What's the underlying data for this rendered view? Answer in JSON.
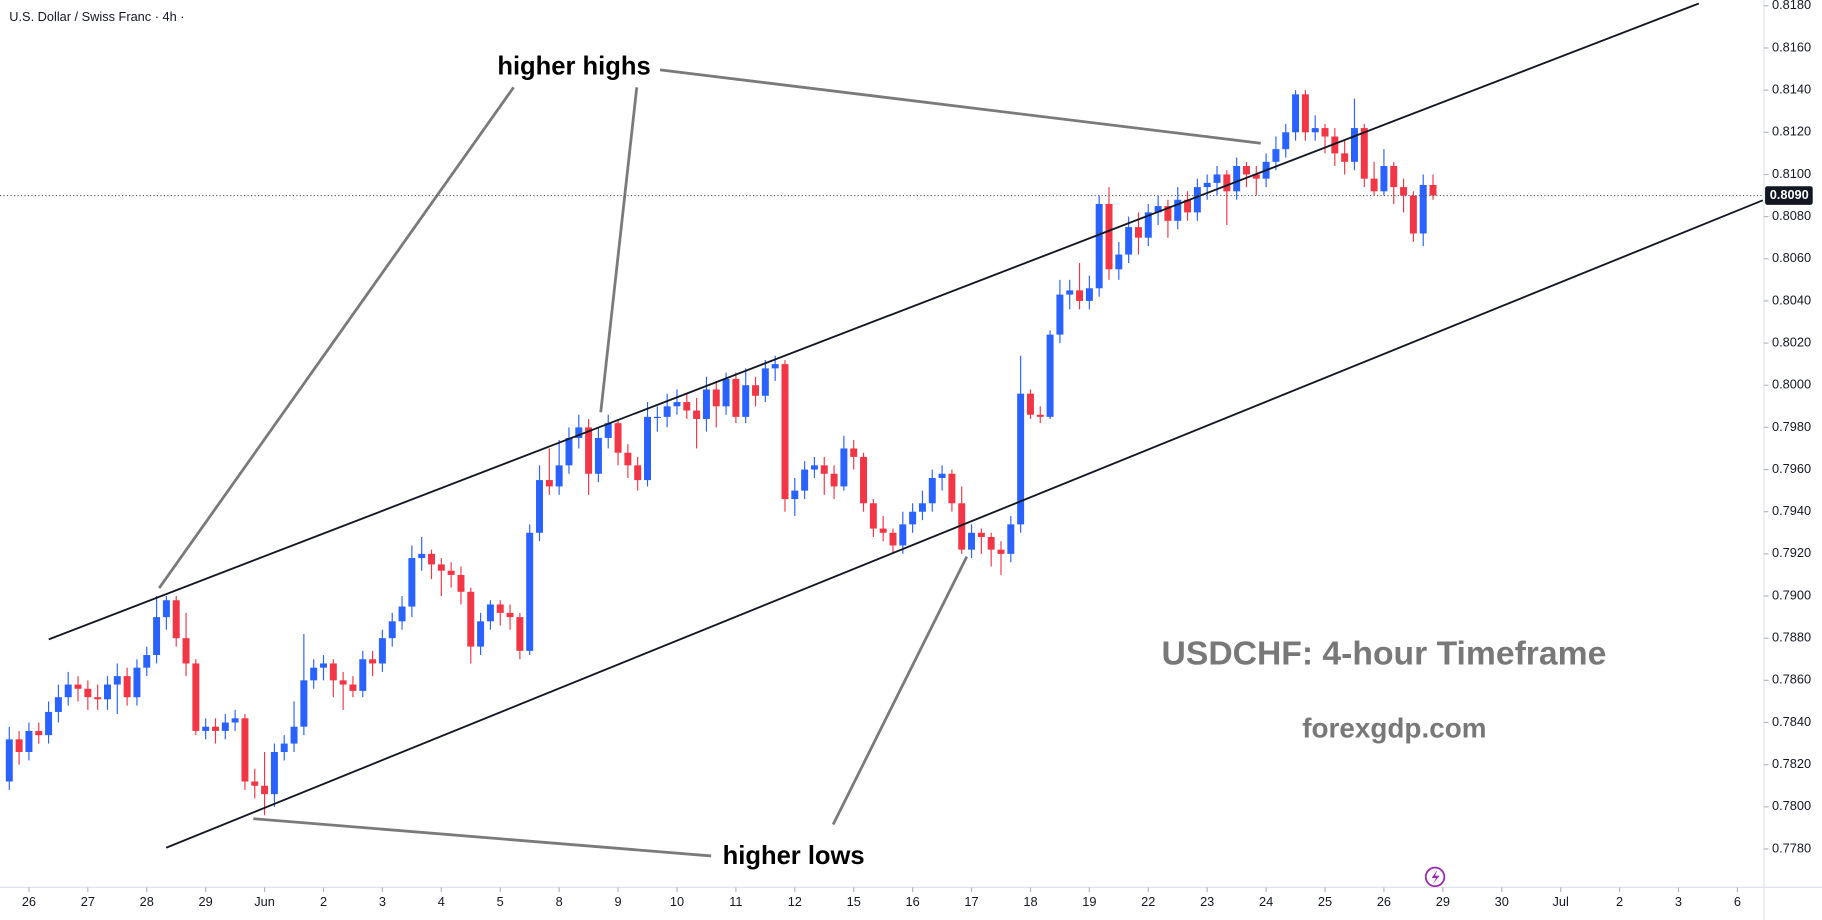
{
  "chart_data": {
    "type": "candlestick",
    "title": "U.S. Dollar / Swiss Franc · 4h ·",
    "annotations": [
      "higher highs",
      "higher lows",
      "USDCHF: 4-hour Timeframe",
      "forexgdp.com"
    ],
    "up_color": "#2962ff",
    "down_color": "#f23645",
    "ylim": [
      0.778,
      0.818
    ],
    "yticks": [
      {
        "value": 0.778,
        "label": "0.7780"
      },
      {
        "value": 0.78,
        "label": "0.7800"
      },
      {
        "value": 0.782,
        "label": "0.7820"
      },
      {
        "value": 0.784,
        "label": "0.7840"
      },
      {
        "value": 0.786,
        "label": "0.7860"
      },
      {
        "value": 0.788,
        "label": "0.7880"
      },
      {
        "value": 0.79,
        "label": "0.7900"
      },
      {
        "value": 0.792,
        "label": "0.7920"
      },
      {
        "value": 0.794,
        "label": "0.7940"
      },
      {
        "value": 0.796,
        "label": "0.7960"
      },
      {
        "value": 0.798,
        "label": "0.7980"
      },
      {
        "value": 0.8,
        "label": "0.8000"
      },
      {
        "value": 0.802,
        "label": "0.8020"
      },
      {
        "value": 0.804,
        "label": "0.8040"
      },
      {
        "value": 0.806,
        "label": "0.8060"
      },
      {
        "value": 0.808,
        "label": "0.8080"
      },
      {
        "value": 0.81,
        "label": "0.8100"
      },
      {
        "value": 0.812,
        "label": "0.8120"
      },
      {
        "value": 0.814,
        "label": "0.8140"
      },
      {
        "value": 0.816,
        "label": "0.8160"
      },
      {
        "value": 0.818,
        "label": "0.8180"
      }
    ],
    "last_price": {
      "value": 0.809,
      "label": "0.8090"
    },
    "xticks": [
      "26",
      "27",
      "28",
      "29",
      "Jun",
      "2",
      "3",
      "4",
      "5",
      "8",
      "9",
      "10",
      "11",
      "12",
      "15",
      "16",
      "17",
      "18",
      "19",
      "22",
      "23",
      "24",
      "25",
      "26",
      "29",
      "30",
      "Jul",
      "2",
      "3",
      "6"
    ],
    "ohlc": [
      [
        0.7812,
        0.7838,
        0.7808,
        0.7832
      ],
      [
        0.7832,
        0.7836,
        0.782,
        0.7826
      ],
      [
        0.7826,
        0.784,
        0.7822,
        0.7836
      ],
      [
        0.7836,
        0.784,
        0.783,
        0.7834
      ],
      [
        0.7834,
        0.785,
        0.783,
        0.7845
      ],
      [
        0.7845,
        0.7858,
        0.784,
        0.7852
      ],
      [
        0.7852,
        0.7864,
        0.7848,
        0.7858
      ],
      [
        0.7858,
        0.7862,
        0.785,
        0.7856
      ],
      [
        0.7856,
        0.786,
        0.7846,
        0.7852
      ],
      [
        0.7852,
        0.7858,
        0.7846,
        0.7851
      ],
      [
        0.7851,
        0.7862,
        0.7846,
        0.7858
      ],
      [
        0.7858,
        0.7868,
        0.7844,
        0.7862
      ],
      [
        0.7862,
        0.7866,
        0.7848,
        0.7852
      ],
      [
        0.7852,
        0.787,
        0.7848,
        0.7866
      ],
      [
        0.7866,
        0.7876,
        0.7862,
        0.7872
      ],
      [
        0.7872,
        0.79,
        0.7868,
        0.789
      ],
      [
        0.789,
        0.79,
        0.7884,
        0.7898
      ],
      [
        0.7898,
        0.79,
        0.7876,
        0.788
      ],
      [
        0.788,
        0.7892,
        0.7862,
        0.7868
      ],
      [
        0.7868,
        0.787,
        0.7834,
        0.7836
      ],
      [
        0.7836,
        0.7842,
        0.7832,
        0.7838
      ],
      [
        0.7838,
        0.7842,
        0.783,
        0.7836
      ],
      [
        0.7836,
        0.7844,
        0.7832,
        0.784
      ],
      [
        0.784,
        0.7846,
        0.7836,
        0.7842
      ],
      [
        0.7842,
        0.7844,
        0.7808,
        0.7812
      ],
      [
        0.7812,
        0.7818,
        0.7804,
        0.781
      ],
      [
        0.781,
        0.7826,
        0.7796,
        0.7806
      ],
      [
        0.7806,
        0.783,
        0.78,
        0.7826
      ],
      [
        0.7826,
        0.7834,
        0.7822,
        0.783
      ],
      [
        0.783,
        0.785,
        0.7826,
        0.7838
      ],
      [
        0.7838,
        0.7882,
        0.7834,
        0.786
      ],
      [
        0.786,
        0.787,
        0.7856,
        0.7866
      ],
      [
        0.7866,
        0.7872,
        0.786,
        0.7868
      ],
      [
        0.7868,
        0.787,
        0.7852,
        0.786
      ],
      [
        0.786,
        0.7864,
        0.7846,
        0.7858
      ],
      [
        0.7858,
        0.7862,
        0.7852,
        0.7855
      ],
      [
        0.7855,
        0.7874,
        0.7852,
        0.787
      ],
      [
        0.787,
        0.7874,
        0.7862,
        0.7868
      ],
      [
        0.7868,
        0.7884,
        0.7864,
        0.788
      ],
      [
        0.788,
        0.7892,
        0.7876,
        0.7888
      ],
      [
        0.7888,
        0.79,
        0.7884,
        0.7895
      ],
      [
        0.7895,
        0.7924,
        0.789,
        0.7918
      ],
      [
        0.7918,
        0.7928,
        0.7912,
        0.792
      ],
      [
        0.792,
        0.7922,
        0.7908,
        0.7915
      ],
      [
        0.7915,
        0.7918,
        0.79,
        0.7912
      ],
      [
        0.7912,
        0.7916,
        0.7904,
        0.791
      ],
      [
        0.791,
        0.7914,
        0.7896,
        0.7902
      ],
      [
        0.7902,
        0.7904,
        0.7868,
        0.7876
      ],
      [
        0.7876,
        0.7892,
        0.7872,
        0.7888
      ],
      [
        0.7888,
        0.7898,
        0.7884,
        0.7896
      ],
      [
        0.7896,
        0.7898,
        0.7886,
        0.7892
      ],
      [
        0.7892,
        0.7896,
        0.7884,
        0.789
      ],
      [
        0.789,
        0.7892,
        0.787,
        0.7874
      ],
      [
        0.7874,
        0.7934,
        0.7872,
        0.793
      ],
      [
        0.793,
        0.7962,
        0.7926,
        0.7955
      ],
      [
        0.7955,
        0.797,
        0.7948,
        0.7952
      ],
      [
        0.7952,
        0.7974,
        0.7948,
        0.7962
      ],
      [
        0.7962,
        0.798,
        0.7958,
        0.7975
      ],
      [
        0.7975,
        0.7986,
        0.797,
        0.798
      ],
      [
        0.798,
        0.7984,
        0.7948,
        0.7958
      ],
      [
        0.7958,
        0.798,
        0.7954,
        0.7975
      ],
      [
        0.7975,
        0.7986,
        0.797,
        0.7982
      ],
      [
        0.7982,
        0.7984,
        0.7962,
        0.7968
      ],
      [
        0.7968,
        0.7972,
        0.7956,
        0.7962
      ],
      [
        0.7962,
        0.7966,
        0.795,
        0.7955
      ],
      [
        0.7955,
        0.7992,
        0.7952,
        0.7985
      ],
      [
        0.7985,
        0.799,
        0.7978,
        0.7985
      ],
      [
        0.7985,
        0.7996,
        0.798,
        0.799
      ],
      [
        0.799,
        0.7998,
        0.7986,
        0.7992
      ],
      [
        0.7992,
        0.7996,
        0.7984,
        0.7988
      ],
      [
        0.7988,
        0.7994,
        0.797,
        0.7984
      ],
      [
        0.7984,
        0.8004,
        0.7978,
        0.7998
      ],
      [
        0.7998,
        0.8002,
        0.798,
        0.799
      ],
      [
        0.799,
        0.8006,
        0.7986,
        0.8003
      ],
      [
        0.8003,
        0.8006,
        0.7982,
        0.7985
      ],
      [
        0.7985,
        0.8008,
        0.7982,
        0.8
      ],
      [
        0.8,
        0.8004,
        0.799,
        0.7995
      ],
      [
        0.7995,
        0.8012,
        0.7992,
        0.8008
      ],
      [
        0.8008,
        0.8014,
        0.8002,
        0.801
      ],
      [
        0.801,
        0.8012,
        0.794,
        0.7946
      ],
      [
        0.7946,
        0.7956,
        0.7938,
        0.795
      ],
      [
        0.795,
        0.7964,
        0.7946,
        0.796
      ],
      [
        0.796,
        0.7966,
        0.7956,
        0.7962
      ],
      [
        0.7962,
        0.7966,
        0.7948,
        0.7958
      ],
      [
        0.7958,
        0.7962,
        0.7946,
        0.7952
      ],
      [
        0.7952,
        0.7976,
        0.795,
        0.797
      ],
      [
        0.797,
        0.7974,
        0.796,
        0.7966
      ],
      [
        0.7966,
        0.7968,
        0.794,
        0.7944
      ],
      [
        0.7944,
        0.7946,
        0.7928,
        0.7932
      ],
      [
        0.7932,
        0.7938,
        0.7926,
        0.793
      ],
      [
        0.793,
        0.7932,
        0.792,
        0.7924
      ],
      [
        0.7924,
        0.794,
        0.792,
        0.7934
      ],
      [
        0.7934,
        0.7944,
        0.793,
        0.794
      ],
      [
        0.794,
        0.795,
        0.7936,
        0.7944
      ],
      [
        0.7944,
        0.796,
        0.794,
        0.7956
      ],
      [
        0.7956,
        0.7962,
        0.795,
        0.7958
      ],
      [
        0.7958,
        0.796,
        0.794,
        0.7944
      ],
      [
        0.7944,
        0.7952,
        0.792,
        0.7922
      ],
      [
        0.7922,
        0.7934,
        0.7918,
        0.793
      ],
      [
        0.793,
        0.7932,
        0.792,
        0.7928
      ],
      [
        0.7928,
        0.793,
        0.7914,
        0.7922
      ],
      [
        0.7922,
        0.7926,
        0.791,
        0.792
      ],
      [
        0.792,
        0.7938,
        0.7916,
        0.7934
      ],
      [
        0.7934,
        0.8014,
        0.793,
        0.7996
      ],
      [
        0.7996,
        0.7998,
        0.7984,
        0.7986
      ],
      [
        0.7986,
        0.799,
        0.7982,
        0.7985
      ],
      [
        0.7985,
        0.8026,
        0.7984,
        0.8024
      ],
      [
        0.8024,
        0.805,
        0.802,
        0.8043
      ],
      [
        0.8043,
        0.805,
        0.8036,
        0.8045
      ],
      [
        0.8045,
        0.8058,
        0.8036,
        0.804
      ],
      [
        0.804,
        0.8052,
        0.8036,
        0.8046
      ],
      [
        0.8046,
        0.809,
        0.8042,
        0.8086
      ],
      [
        0.8086,
        0.8094,
        0.805,
        0.8055
      ],
      [
        0.8055,
        0.8068,
        0.805,
        0.8062
      ],
      [
        0.8062,
        0.808,
        0.8058,
        0.8075
      ],
      [
        0.8075,
        0.8082,
        0.8062,
        0.807
      ],
      [
        0.807,
        0.8086,
        0.8066,
        0.8082
      ],
      [
        0.8082,
        0.809,
        0.8076,
        0.8085
      ],
      [
        0.8085,
        0.8088,
        0.807,
        0.8078
      ],
      [
        0.8078,
        0.8094,
        0.8074,
        0.8088
      ],
      [
        0.8088,
        0.8092,
        0.8078,
        0.8082
      ],
      [
        0.8082,
        0.8098,
        0.8078,
        0.8094
      ],
      [
        0.8094,
        0.81,
        0.8088,
        0.8096
      ],
      [
        0.8096,
        0.8104,
        0.809,
        0.81
      ],
      [
        0.81,
        0.8102,
        0.8076,
        0.8092
      ],
      [
        0.8092,
        0.8108,
        0.8088,
        0.8104
      ],
      [
        0.8104,
        0.8106,
        0.8094,
        0.81
      ],
      [
        0.81,
        0.8104,
        0.809,
        0.8098
      ],
      [
        0.8098,
        0.811,
        0.8094,
        0.8106
      ],
      [
        0.8106,
        0.8118,
        0.8102,
        0.8112
      ],
      [
        0.8112,
        0.8124,
        0.8108,
        0.812
      ],
      [
        0.812,
        0.814,
        0.8116,
        0.8138
      ],
      [
        0.8138,
        0.814,
        0.8116,
        0.812
      ],
      [
        0.812,
        0.8128,
        0.8116,
        0.8122
      ],
      [
        0.8122,
        0.8124,
        0.811,
        0.8118
      ],
      [
        0.8118,
        0.8122,
        0.8104,
        0.811
      ],
      [
        0.811,
        0.8116,
        0.81,
        0.8106
      ],
      [
        0.8106,
        0.8136,
        0.8102,
        0.8122
      ],
      [
        0.8122,
        0.8124,
        0.8094,
        0.8098
      ],
      [
        0.8098,
        0.8106,
        0.809,
        0.8092
      ],
      [
        0.8092,
        0.8112,
        0.809,
        0.8104
      ],
      [
        0.8104,
        0.8106,
        0.8086,
        0.8094
      ],
      [
        0.8094,
        0.8098,
        0.8082,
        0.809
      ],
      [
        0.809,
        0.8092,
        0.8068,
        0.8072
      ],
      [
        0.8072,
        0.81,
        0.8066,
        0.8095
      ],
      [
        0.8095,
        0.81,
        0.8088,
        0.809
      ]
    ]
  }
}
